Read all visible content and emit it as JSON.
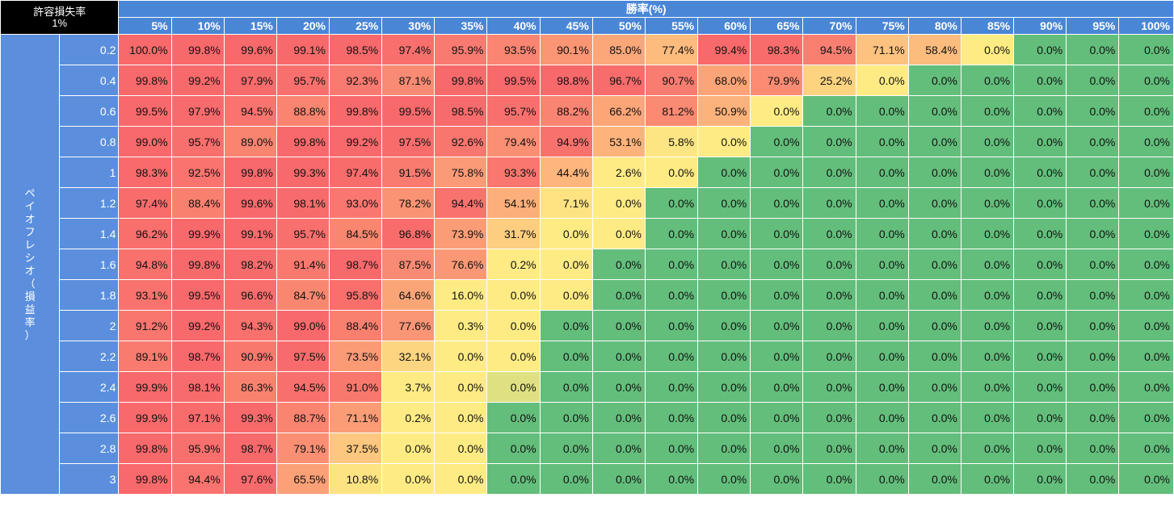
{
  "header": {
    "title": "許容損失率",
    "risk_value": "1%",
    "win_rate_label": "勝率(%)",
    "payoff_label_chars": [
      "ペ",
      "イ",
      "オ",
      "フ",
      "レ",
      "シ",
      "オ",
      "（",
      "損",
      "益",
      "率",
      "）"
    ]
  },
  "colors": {
    "header_blue": "#4a86d6",
    "row_blue": "#5b8fdd",
    "corner_black": "#000000",
    "red": "#f8696b",
    "yellow": "#ffeb84",
    "green": "#63be7b"
  },
  "chart_data": {
    "type": "heatmap",
    "title": "許容損失率 1%",
    "xlabel": "勝率(%)",
    "ylabel": "ペイオフレシオ（損益率）",
    "x": [
      "5%",
      "10%",
      "15%",
      "20%",
      "25%",
      "30%",
      "35%",
      "40%",
      "45%",
      "50%",
      "55%",
      "60%",
      "65%",
      "70%",
      "75%",
      "80%",
      "85%",
      "90%",
      "95%",
      "100%"
    ],
    "y": [
      "0.2",
      "0.4",
      "0.6",
      "0.8",
      "1",
      "1.2",
      "1.4",
      "1.6",
      "1.8",
      "2",
      "2.2",
      "2.4",
      "2.6",
      "2.8",
      "3"
    ],
    "values": [
      [
        "100.0%",
        "99.8%",
        "99.6%",
        "99.1%",
        "98.5%",
        "97.4%",
        "95.9%",
        "93.5%",
        "90.1%",
        "85.0%",
        "77.4%",
        "99.4%",
        "98.3%",
        "94.5%",
        "71.1%",
        "58.4%",
        "0.0%",
        "0.0%",
        "0.0%",
        "0.0%"
      ],
      [
        "99.8%",
        "99.2%",
        "97.9%",
        "95.7%",
        "92.3%",
        "87.1%",
        "99.8%",
        "99.5%",
        "98.8%",
        "96.7%",
        "90.7%",
        "68.0%",
        "79.9%",
        "25.2%",
        "0.0%",
        "0.0%",
        "0.0%",
        "0.0%",
        "0.0%",
        "0.0%"
      ],
      [
        "99.5%",
        "97.9%",
        "94.5%",
        "88.8%",
        "99.8%",
        "99.5%",
        "98.5%",
        "95.7%",
        "88.2%",
        "66.2%",
        "81.2%",
        "50.9%",
        "0.0%",
        "0.0%",
        "0.0%",
        "0.0%",
        "0.0%",
        "0.0%",
        "0.0%",
        "0.0%"
      ],
      [
        "99.0%",
        "95.7%",
        "89.0%",
        "99.8%",
        "99.2%",
        "97.5%",
        "92.6%",
        "79.4%",
        "94.9%",
        "53.1%",
        "5.8%",
        "0.0%",
        "0.0%",
        "0.0%",
        "0.0%",
        "0.0%",
        "0.0%",
        "0.0%",
        "0.0%",
        "0.0%"
      ],
      [
        "98.3%",
        "92.5%",
        "99.8%",
        "99.3%",
        "97.4%",
        "91.5%",
        "75.8%",
        "93.3%",
        "44.4%",
        "2.6%",
        "0.0%",
        "0.0%",
        "0.0%",
        "0.0%",
        "0.0%",
        "0.0%",
        "0.0%",
        "0.0%",
        "0.0%",
        "0.0%"
      ],
      [
        "97.4%",
        "88.4%",
        "99.6%",
        "98.1%",
        "93.0%",
        "78.2%",
        "94.4%",
        "54.1%",
        "7.1%",
        "0.0%",
        "0.0%",
        "0.0%",
        "0.0%",
        "0.0%",
        "0.0%",
        "0.0%",
        "0.0%",
        "0.0%",
        "0.0%",
        "0.0%"
      ],
      [
        "96.2%",
        "99.9%",
        "99.1%",
        "95.7%",
        "84.5%",
        "96.8%",
        "73.9%",
        "31.7%",
        "0.0%",
        "0.0%",
        "0.0%",
        "0.0%",
        "0.0%",
        "0.0%",
        "0.0%",
        "0.0%",
        "0.0%",
        "0.0%",
        "0.0%",
        "0.0%"
      ],
      [
        "94.8%",
        "99.8%",
        "98.2%",
        "91.4%",
        "98.7%",
        "87.5%",
        "76.6%",
        "0.2%",
        "0.0%",
        "0.0%",
        "0.0%",
        "0.0%",
        "0.0%",
        "0.0%",
        "0.0%",
        "0.0%",
        "0.0%",
        "0.0%",
        "0.0%",
        "0.0%"
      ],
      [
        "93.1%",
        "99.5%",
        "96.6%",
        "84.7%",
        "95.8%",
        "64.6%",
        "16.0%",
        "0.0%",
        "0.0%",
        "0.0%",
        "0.0%",
        "0.0%",
        "0.0%",
        "0.0%",
        "0.0%",
        "0.0%",
        "0.0%",
        "0.0%",
        "0.0%",
        "0.0%"
      ],
      [
        "91.2%",
        "99.2%",
        "94.3%",
        "99.0%",
        "88.4%",
        "77.6%",
        "0.3%",
        "0.0%",
        "0.0%",
        "0.0%",
        "0.0%",
        "0.0%",
        "0.0%",
        "0.0%",
        "0.0%",
        "0.0%",
        "0.0%",
        "0.0%",
        "0.0%",
        "0.0%"
      ],
      [
        "89.1%",
        "98.7%",
        "90.9%",
        "97.5%",
        "73.5%",
        "32.1%",
        "0.0%",
        "0.0%",
        "0.0%",
        "0.0%",
        "0.0%",
        "0.0%",
        "0.0%",
        "0.0%",
        "0.0%",
        "0.0%",
        "0.0%",
        "0.0%",
        "0.0%",
        "0.0%"
      ],
      [
        "99.9%",
        "98.1%",
        "86.3%",
        "94.5%",
        "91.0%",
        "3.7%",
        "0.0%",
        "0.0%",
        "0.0%",
        "0.0%",
        "0.0%",
        "0.0%",
        "0.0%",
        "0.0%",
        "0.0%",
        "0.0%",
        "0.0%",
        "0.0%",
        "0.0%",
        "0.0%"
      ],
      [
        "99.9%",
        "97.1%",
        "99.3%",
        "88.7%",
        "71.1%",
        "0.2%",
        "0.0%",
        "0.0%",
        "0.0%",
        "0.0%",
        "0.0%",
        "0.0%",
        "0.0%",
        "0.0%",
        "0.0%",
        "0.0%",
        "0.0%",
        "0.0%",
        "0.0%",
        "0.0%"
      ],
      [
        "99.8%",
        "95.9%",
        "98.7%",
        "79.1%",
        "37.5%",
        "0.0%",
        "0.0%",
        "0.0%",
        "0.0%",
        "0.0%",
        "0.0%",
        "0.0%",
        "0.0%",
        "0.0%",
        "0.0%",
        "0.0%",
        "0.0%",
        "0.0%",
        "0.0%",
        "0.0%"
      ],
      [
        "99.8%",
        "94.4%",
        "97.6%",
        "65.5%",
        "10.8%",
        "0.0%",
        "0.0%",
        "0.0%",
        "0.0%",
        "0.0%",
        "0.0%",
        "0.0%",
        "0.0%",
        "0.0%",
        "0.0%",
        "0.0%",
        "0.0%",
        "0.0%",
        "0.0%",
        "0.0%"
      ]
    ],
    "cell_colors": [
      [
        "#f8696b",
        "#f8696b",
        "#f8696b",
        "#f8696b",
        "#f8696b",
        "#f96f6d",
        "#f97a70",
        "#fa8572",
        "#fb9675",
        "#fca77a",
        "#fdbb7e",
        "#f8696b",
        "#f86d6c",
        "#f97f71",
        "#fdc27f",
        "#fcbc7e",
        "#ffeb84",
        "#63be7b",
        "#63be7b",
        "#63be7b"
      ],
      [
        "#f8696b",
        "#f8696b",
        "#f86b6c",
        "#f8706d",
        "#f97a70",
        "#f98a73",
        "#f8696b",
        "#f8696b",
        "#f8696b",
        "#f86c6c",
        "#f97c70",
        "#fba477",
        "#fb8c73",
        "#fdd380",
        "#ffeb84",
        "#63be7b",
        "#63be7b",
        "#63be7b",
        "#63be7b",
        "#63be7b"
      ],
      [
        "#f8696b",
        "#f86b6c",
        "#f9746e",
        "#f98470",
        "#f8696b",
        "#f8696b",
        "#f86b6c",
        "#f8706d",
        "#fa8472",
        "#fca577",
        "#fb8a73",
        "#fcb27b",
        "#ffeb84",
        "#63be7b",
        "#63be7b",
        "#63be7b",
        "#63be7b",
        "#63be7b",
        "#63be7b",
        "#63be7b"
      ],
      [
        "#f8696b",
        "#f8706d",
        "#f98470",
        "#f8696b",
        "#f8696b",
        "#f86d6c",
        "#f9766e",
        "#fa8f74",
        "#f8726d",
        "#fdb37b",
        "#fee583",
        "#ffeb84",
        "#63be7b",
        "#63be7b",
        "#63be7b",
        "#63be7b",
        "#63be7b",
        "#63be7b",
        "#63be7b",
        "#63be7b"
      ],
      [
        "#f86a6b",
        "#f9746e",
        "#f8696b",
        "#f8696b",
        "#f86d6c",
        "#f97b70",
        "#fa9a76",
        "#f9776f",
        "#fdb67c",
        "#ffeb84",
        "#ffeb84",
        "#63be7b",
        "#63be7b",
        "#63be7b",
        "#63be7b",
        "#63be7b",
        "#63be7b",
        "#63be7b",
        "#63be7b",
        "#63be7b"
      ],
      [
        "#f86d6c",
        "#f9806f",
        "#f8696b",
        "#f86b6c",
        "#f97770",
        "#fa9373",
        "#f8736d",
        "#fcaf7a",
        "#ffe383",
        "#ffeb84",
        "#63be7b",
        "#63be7b",
        "#63be7b",
        "#63be7b",
        "#63be7b",
        "#63be7b",
        "#63be7b",
        "#63be7b",
        "#63be7b",
        "#63be7b"
      ],
      [
        "#f86f6c",
        "#f8696b",
        "#f8696b",
        "#f8706d",
        "#f9866f",
        "#f86d6c",
        "#fa9d76",
        "#fdcd80",
        "#ffeb84",
        "#ffeb84",
        "#63be7b",
        "#63be7b",
        "#63be7b",
        "#63be7b",
        "#63be7b",
        "#63be7b",
        "#63be7b",
        "#63be7b",
        "#63be7b",
        "#63be7b"
      ],
      [
        "#f8716d",
        "#f8696b",
        "#f86b6c",
        "#f9796f",
        "#f8696b",
        "#f98a73",
        "#fa9876",
        "#ffeb84",
        "#ffeb84",
        "#63be7b",
        "#63be7b",
        "#63be7b",
        "#63be7b",
        "#63be7b",
        "#63be7b",
        "#63be7b",
        "#63be7b",
        "#63be7b",
        "#63be7b",
        "#63be7b"
      ],
      [
        "#f8736d",
        "#f8696b",
        "#f86e6c",
        "#f98770",
        "#f86f6c",
        "#fba577",
        "#ffeb84",
        "#ffeb84",
        "#ffeb84",
        "#63be7b",
        "#63be7b",
        "#63be7b",
        "#63be7b",
        "#63be7b",
        "#63be7b",
        "#63be7b",
        "#63be7b",
        "#63be7b",
        "#63be7b",
        "#63be7b"
      ],
      [
        "#f8766e",
        "#f8696b",
        "#f8716d",
        "#f8696b",
        "#f9806f",
        "#fa9575",
        "#ffeb84",
        "#ffeb84",
        "#63be7b",
        "#63be7b",
        "#63be7b",
        "#63be7b",
        "#63be7b",
        "#63be7b",
        "#63be7b",
        "#63be7b",
        "#63be7b",
        "#63be7b",
        "#63be7b",
        "#63be7b"
      ],
      [
        "#f97a6f",
        "#f8696b",
        "#f9786e",
        "#f86b6c",
        "#fa9b76",
        "#fdd580",
        "#ffeb84",
        "#ffeb84",
        "#63be7b",
        "#63be7b",
        "#63be7b",
        "#63be7b",
        "#63be7b",
        "#63be7b",
        "#63be7b",
        "#63be7b",
        "#63be7b",
        "#63be7b",
        "#63be7b",
        "#63be7b"
      ],
      [
        "#f8696b",
        "#f86b6c",
        "#f9826f",
        "#f8706d",
        "#f9786e",
        "#ffeb84",
        "#ffeb84",
        "#dfe082",
        "#63be7b",
        "#63be7b",
        "#63be7b",
        "#63be7b",
        "#63be7b",
        "#63be7b",
        "#63be7b",
        "#63be7b",
        "#63be7b",
        "#63be7b",
        "#63be7b",
        "#63be7b"
      ],
      [
        "#f8696b",
        "#f86c6c",
        "#f8696b",
        "#f98470",
        "#fa9d76",
        "#ffeb84",
        "#ffeb84",
        "#63be7b",
        "#63be7b",
        "#63be7b",
        "#63be7b",
        "#63be7b",
        "#63be7b",
        "#63be7b",
        "#63be7b",
        "#63be7b",
        "#63be7b",
        "#63be7b",
        "#63be7b",
        "#63be7b"
      ],
      [
        "#f8696b",
        "#f8706d",
        "#f8696b",
        "#fa8f74",
        "#fdc77f",
        "#ffeb84",
        "#ffeb84",
        "#63be7b",
        "#63be7b",
        "#63be7b",
        "#63be7b",
        "#63be7b",
        "#63be7b",
        "#63be7b",
        "#63be7b",
        "#63be7b",
        "#63be7b",
        "#63be7b",
        "#63be7b",
        "#63be7b"
      ],
      [
        "#f8696b",
        "#f9746e",
        "#f86b6c",
        "#fba077",
        "#fee382",
        "#ffeb84",
        "#ffeb84",
        "#63be7b",
        "#63be7b",
        "#63be7b",
        "#63be7b",
        "#63be7b",
        "#63be7b",
        "#63be7b",
        "#63be7b",
        "#63be7b",
        "#63be7b",
        "#63be7b",
        "#63be7b",
        "#63be7b"
      ]
    ],
    "grid": true
  }
}
